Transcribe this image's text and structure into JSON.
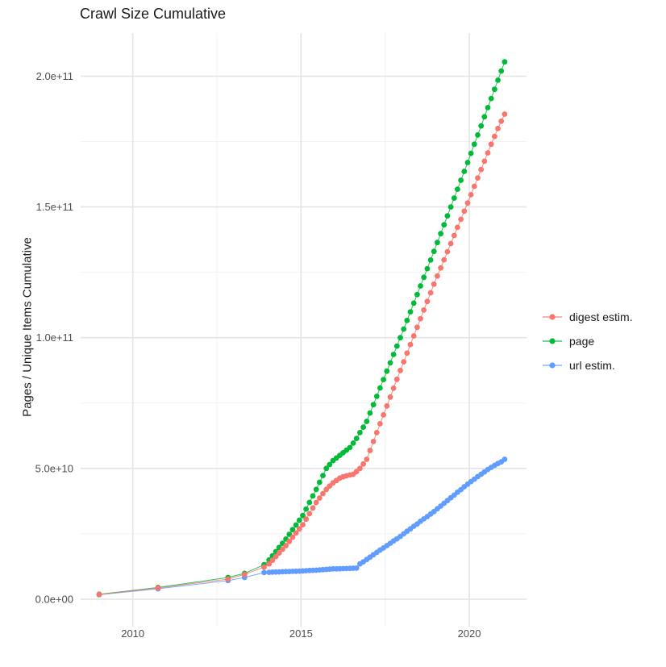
{
  "title": "Crawl Size Cumulative",
  "y_axis": {
    "label": "Pages / Unique Items Cumulative",
    "tick_labels": [
      "0.0e+00",
      "5.0e+10",
      "1.0e+11",
      "1.5e+11",
      "2.0e+11"
    ],
    "tick_values_e9": [
      0,
      50,
      100,
      150,
      200
    ],
    "minor_values_e9": [
      25,
      75,
      125,
      175
    ]
  },
  "x_axis": {
    "tick_labels": [
      "2010",
      "2015",
      "2020"
    ],
    "tick_values": [
      2010,
      2015,
      2020
    ],
    "minor_values": [
      2012.5,
      2017.5
    ]
  },
  "legend": {
    "position": "right",
    "items": [
      {
        "label": "digest estim.",
        "color": "#F8766D"
      },
      {
        "label": "page",
        "color": "#00BA38"
      },
      {
        "label": "url estim.",
        "color": "#619CFF"
      }
    ]
  },
  "style_colors": {
    "grid_major": "#E4E4E4",
    "grid_minor": "#F2F2F2",
    "tick_text": "#4D4D4D",
    "title_text": "#1a1a1a"
  },
  "chart_data": {
    "type": "scatter",
    "title": "Crawl Size Cumulative",
    "xlabel": "",
    "ylabel": "Pages / Unique Items Cumulative",
    "value_unit": "pages, values given in billions (1e9)",
    "xlim": [
      2008.45,
      2021.7
    ],
    "ylim_e9": [
      -10.5,
      216.5
    ],
    "grid": true,
    "legend_position": "right",
    "x_years": [
      2009.0,
      2010.75,
      2012.83,
      2013.32,
      2013.9,
      2014.05,
      2014.15,
      2014.25,
      2014.35,
      2014.45,
      2014.55,
      2014.65,
      2014.75,
      2014.85,
      2014.95,
      2015.05,
      2015.15,
      2015.25,
      2015.35,
      2015.45,
      2015.55,
      2015.65,
      2015.75,
      2015.85,
      2015.95,
      2016.05,
      2016.15,
      2016.25,
      2016.35,
      2016.45,
      2016.55,
      2016.65,
      2016.75,
      2016.85,
      2016.95,
      2017.05,
      2017.15,
      2017.25,
      2017.35,
      2017.45,
      2017.55,
      2017.65,
      2017.75,
      2017.85,
      2017.95,
      2018.05,
      2018.15,
      2018.25,
      2018.35,
      2018.45,
      2018.55,
      2018.65,
      2018.75,
      2018.85,
      2018.95,
      2019.05,
      2019.15,
      2019.25,
      2019.35,
      2019.45,
      2019.55,
      2019.65,
      2019.75,
      2019.85,
      2019.95,
      2020.05,
      2020.15,
      2020.25,
      2020.35,
      2020.45,
      2020.55,
      2020.65,
      2020.75,
      2020.85,
      2020.95,
      2021.05
    ],
    "series": [
      {
        "name": "digest estim.",
        "color": "#F8766D",
        "values_e9": [
          1.8,
          4.3,
          7.7,
          9.5,
          12.3,
          13.5,
          14.9,
          16.3,
          17.7,
          19.1,
          20.5,
          22.1,
          23.7,
          25.3,
          26.9,
          28.5,
          30.6,
          32.7,
          34.9,
          37.0,
          38.7,
          40.4,
          42.0,
          43.3,
          44.5,
          45.4,
          46.3,
          46.8,
          47.2,
          47.5,
          47.8,
          48.8,
          50.0,
          51.7,
          53.5,
          56.9,
          60.3,
          63.7,
          67.1,
          70.5,
          73.9,
          77.3,
          80.7,
          84.1,
          87.5,
          90.8,
          94.1,
          97.4,
          100.7,
          104.0,
          107.3,
          110.6,
          113.9,
          117.2,
          120.5,
          123.6,
          126.7,
          129.8,
          132.9,
          136.0,
          139.1,
          142.2,
          145.3,
          148.4,
          151.5,
          154.7,
          157.9,
          161.1,
          164.3,
          167.5,
          170.7,
          174.0,
          177.0,
          180.0,
          182.8,
          185.5
        ]
      },
      {
        "name": "page",
        "color": "#00BA38",
        "values_e9": [
          1.9,
          4.5,
          8.3,
          9.9,
          13.2,
          15.0,
          16.6,
          18.2,
          19.8,
          21.4,
          23.0,
          24.8,
          26.6,
          28.4,
          30.2,
          32.0,
          34.5,
          37.0,
          39.5,
          42.0,
          44.7,
          47.3,
          50.0,
          51.5,
          53.0,
          54.0,
          55.0,
          56.0,
          57.0,
          58.0,
          59.7,
          61.5,
          63.7,
          65.8,
          68.0,
          71.2,
          74.4,
          77.6,
          80.8,
          84.0,
          87.2,
          90.4,
          93.6,
          96.8,
          100.0,
          103.3,
          106.6,
          109.9,
          113.2,
          116.5,
          119.8,
          123.1,
          126.4,
          129.7,
          133.0,
          136.4,
          139.8,
          143.2,
          146.6,
          150.0,
          153.4,
          156.8,
          160.2,
          163.6,
          167.0,
          170.5,
          174.0,
          177.5,
          181.0,
          184.5,
          188.0,
          191.5,
          195.0,
          198.5,
          202.0,
          205.5
        ]
      },
      {
        "name": "url estim.",
        "color": "#619CFF",
        "values_e9": [
          1.7,
          4.0,
          7.1,
          8.3,
          10.2,
          10.3,
          10.35,
          10.4,
          10.45,
          10.5,
          10.55,
          10.6,
          10.65,
          10.7,
          10.75,
          10.8,
          10.9,
          11.0,
          11.05,
          11.1,
          11.2,
          11.3,
          11.4,
          11.5,
          11.6,
          11.6,
          11.65,
          11.7,
          11.75,
          11.8,
          11.85,
          11.9,
          13.5,
          14.3,
          15.2,
          16.1,
          17.0,
          17.9,
          18.8,
          19.6,
          20.5,
          21.4,
          22.3,
          23.1,
          24.0,
          25.0,
          26.0,
          26.9,
          27.9,
          28.8,
          29.8,
          30.7,
          31.6,
          32.6,
          33.5,
          34.6,
          35.6,
          36.7,
          37.7,
          38.8,
          39.8,
          40.9,
          41.9,
          43.0,
          44.0,
          45.0,
          45.9,
          46.9,
          47.8,
          48.7,
          49.6,
          50.4,
          51.2,
          51.9,
          52.5,
          53.5
        ]
      }
    ]
  }
}
